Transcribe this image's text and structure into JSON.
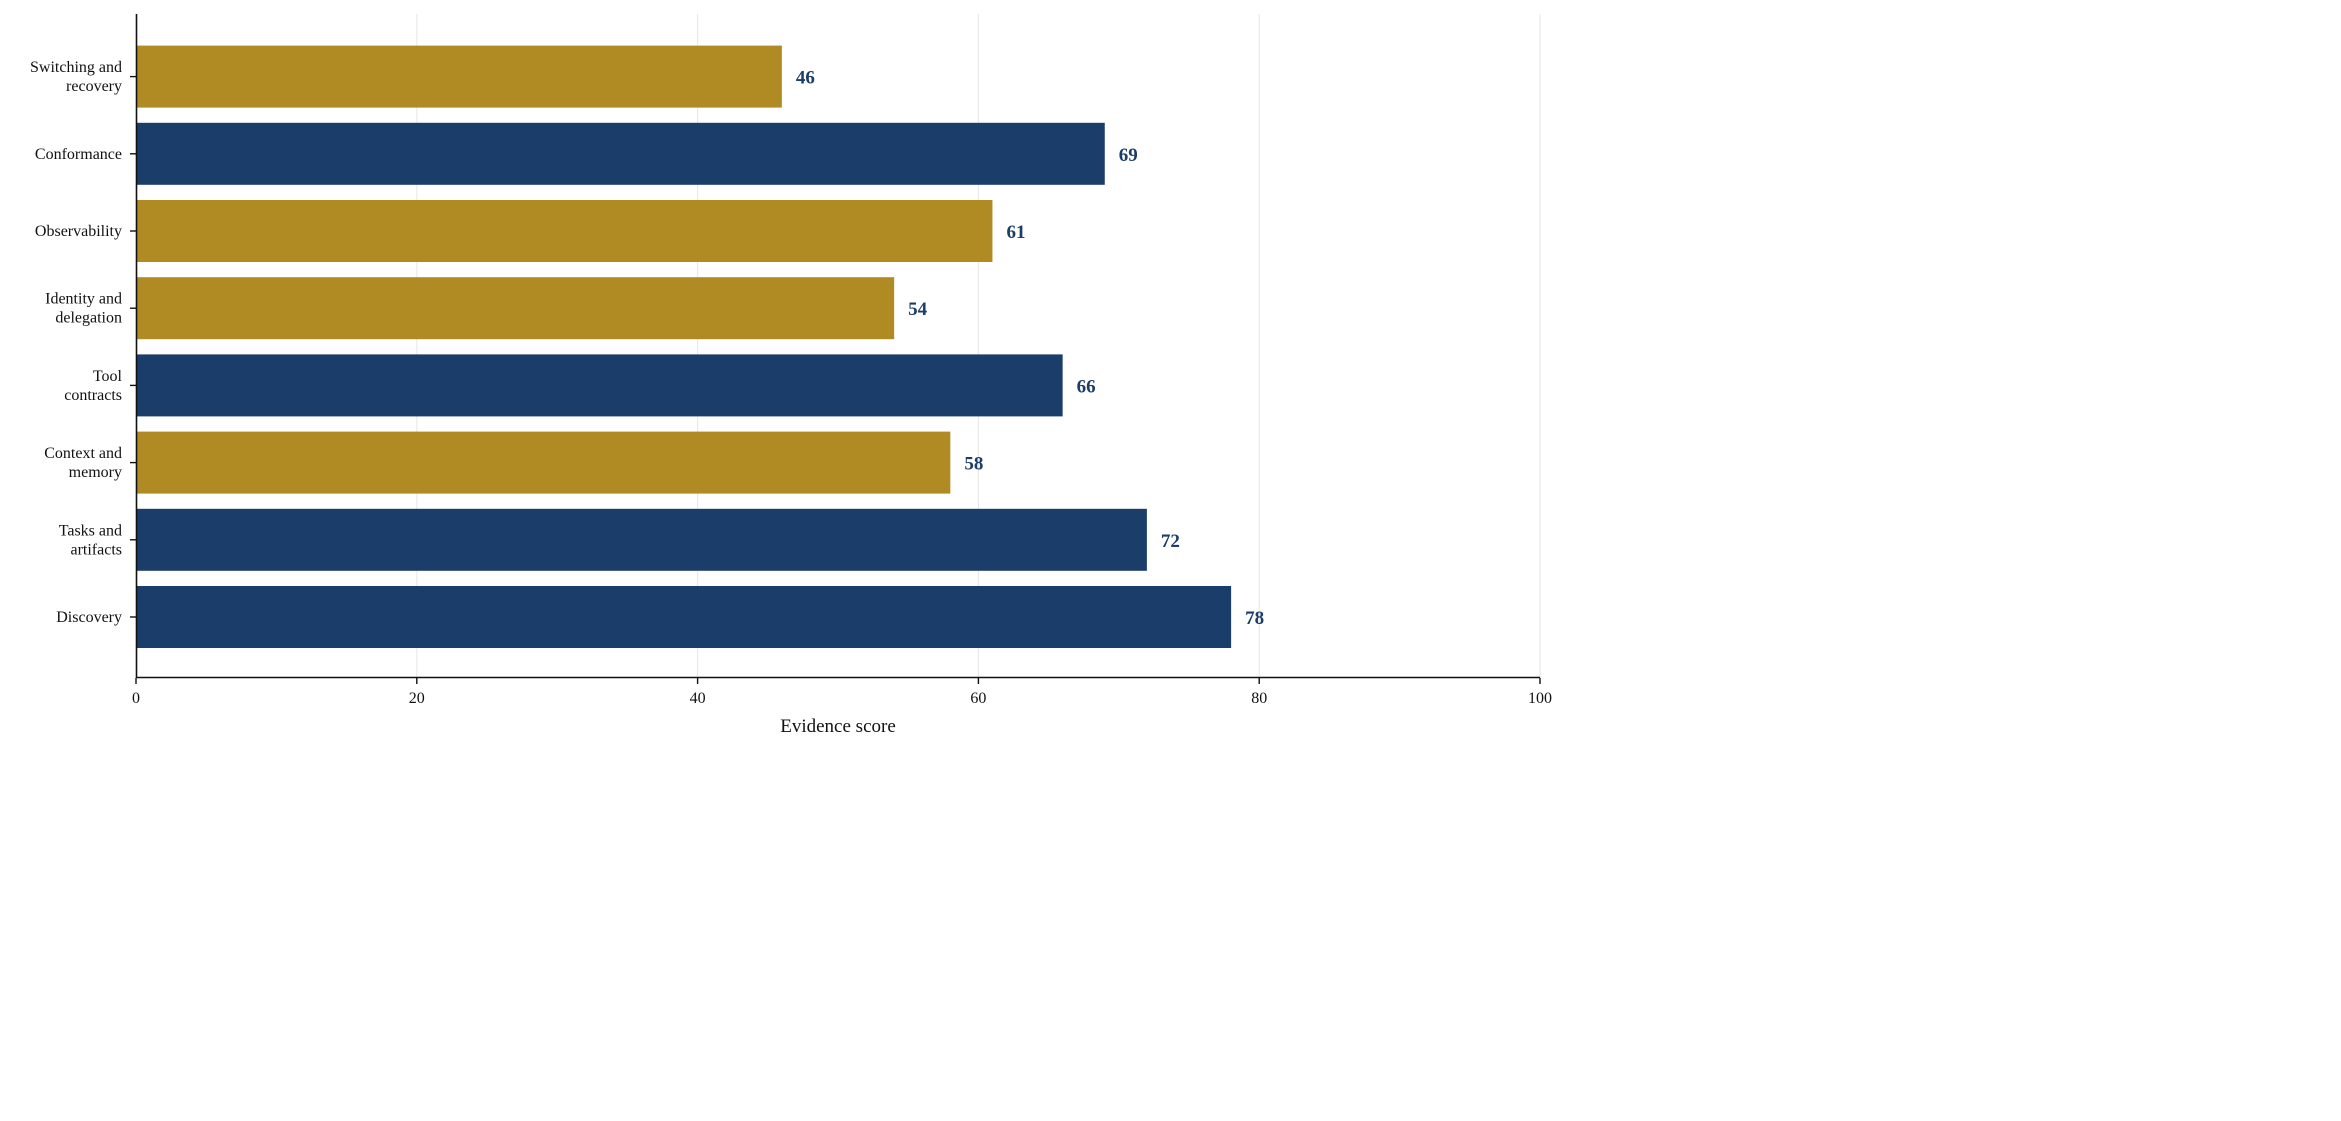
{
  "chart_data": {
    "type": "bar",
    "orientation": "horizontal",
    "categories": [
      "Discovery",
      "Tasks and\nartifacts",
      "Context and\nmemory",
      "Tool\ncontracts",
      "Identity and\ndelegation",
      "Observability",
      "Conformance",
      "Switching and\nrecovery"
    ],
    "values": [
      78,
      72,
      58,
      66,
      54,
      61,
      69,
      46
    ],
    "bar_colors": [
      "#1b3d69",
      "#1b3d69",
      "#b08a22",
      "#1b3d69",
      "#b08a22",
      "#b08a22",
      "#1b3d69",
      "#b08a22"
    ],
    "value_label_color": "#1b3d69",
    "data_labels": [
      "78",
      "72",
      "58",
      "66",
      "54",
      "61",
      "69",
      "46"
    ],
    "xlabel": "Evidence score",
    "ylabel": "",
    "title": "",
    "xlim": [
      0,
      100
    ],
    "xticks": [
      "0",
      "20",
      "40",
      "60",
      "80",
      "100"
    ],
    "xtick_values": [
      0,
      20,
      40,
      60,
      80,
      100
    ],
    "grid": "vertical",
    "legend": "none"
  }
}
